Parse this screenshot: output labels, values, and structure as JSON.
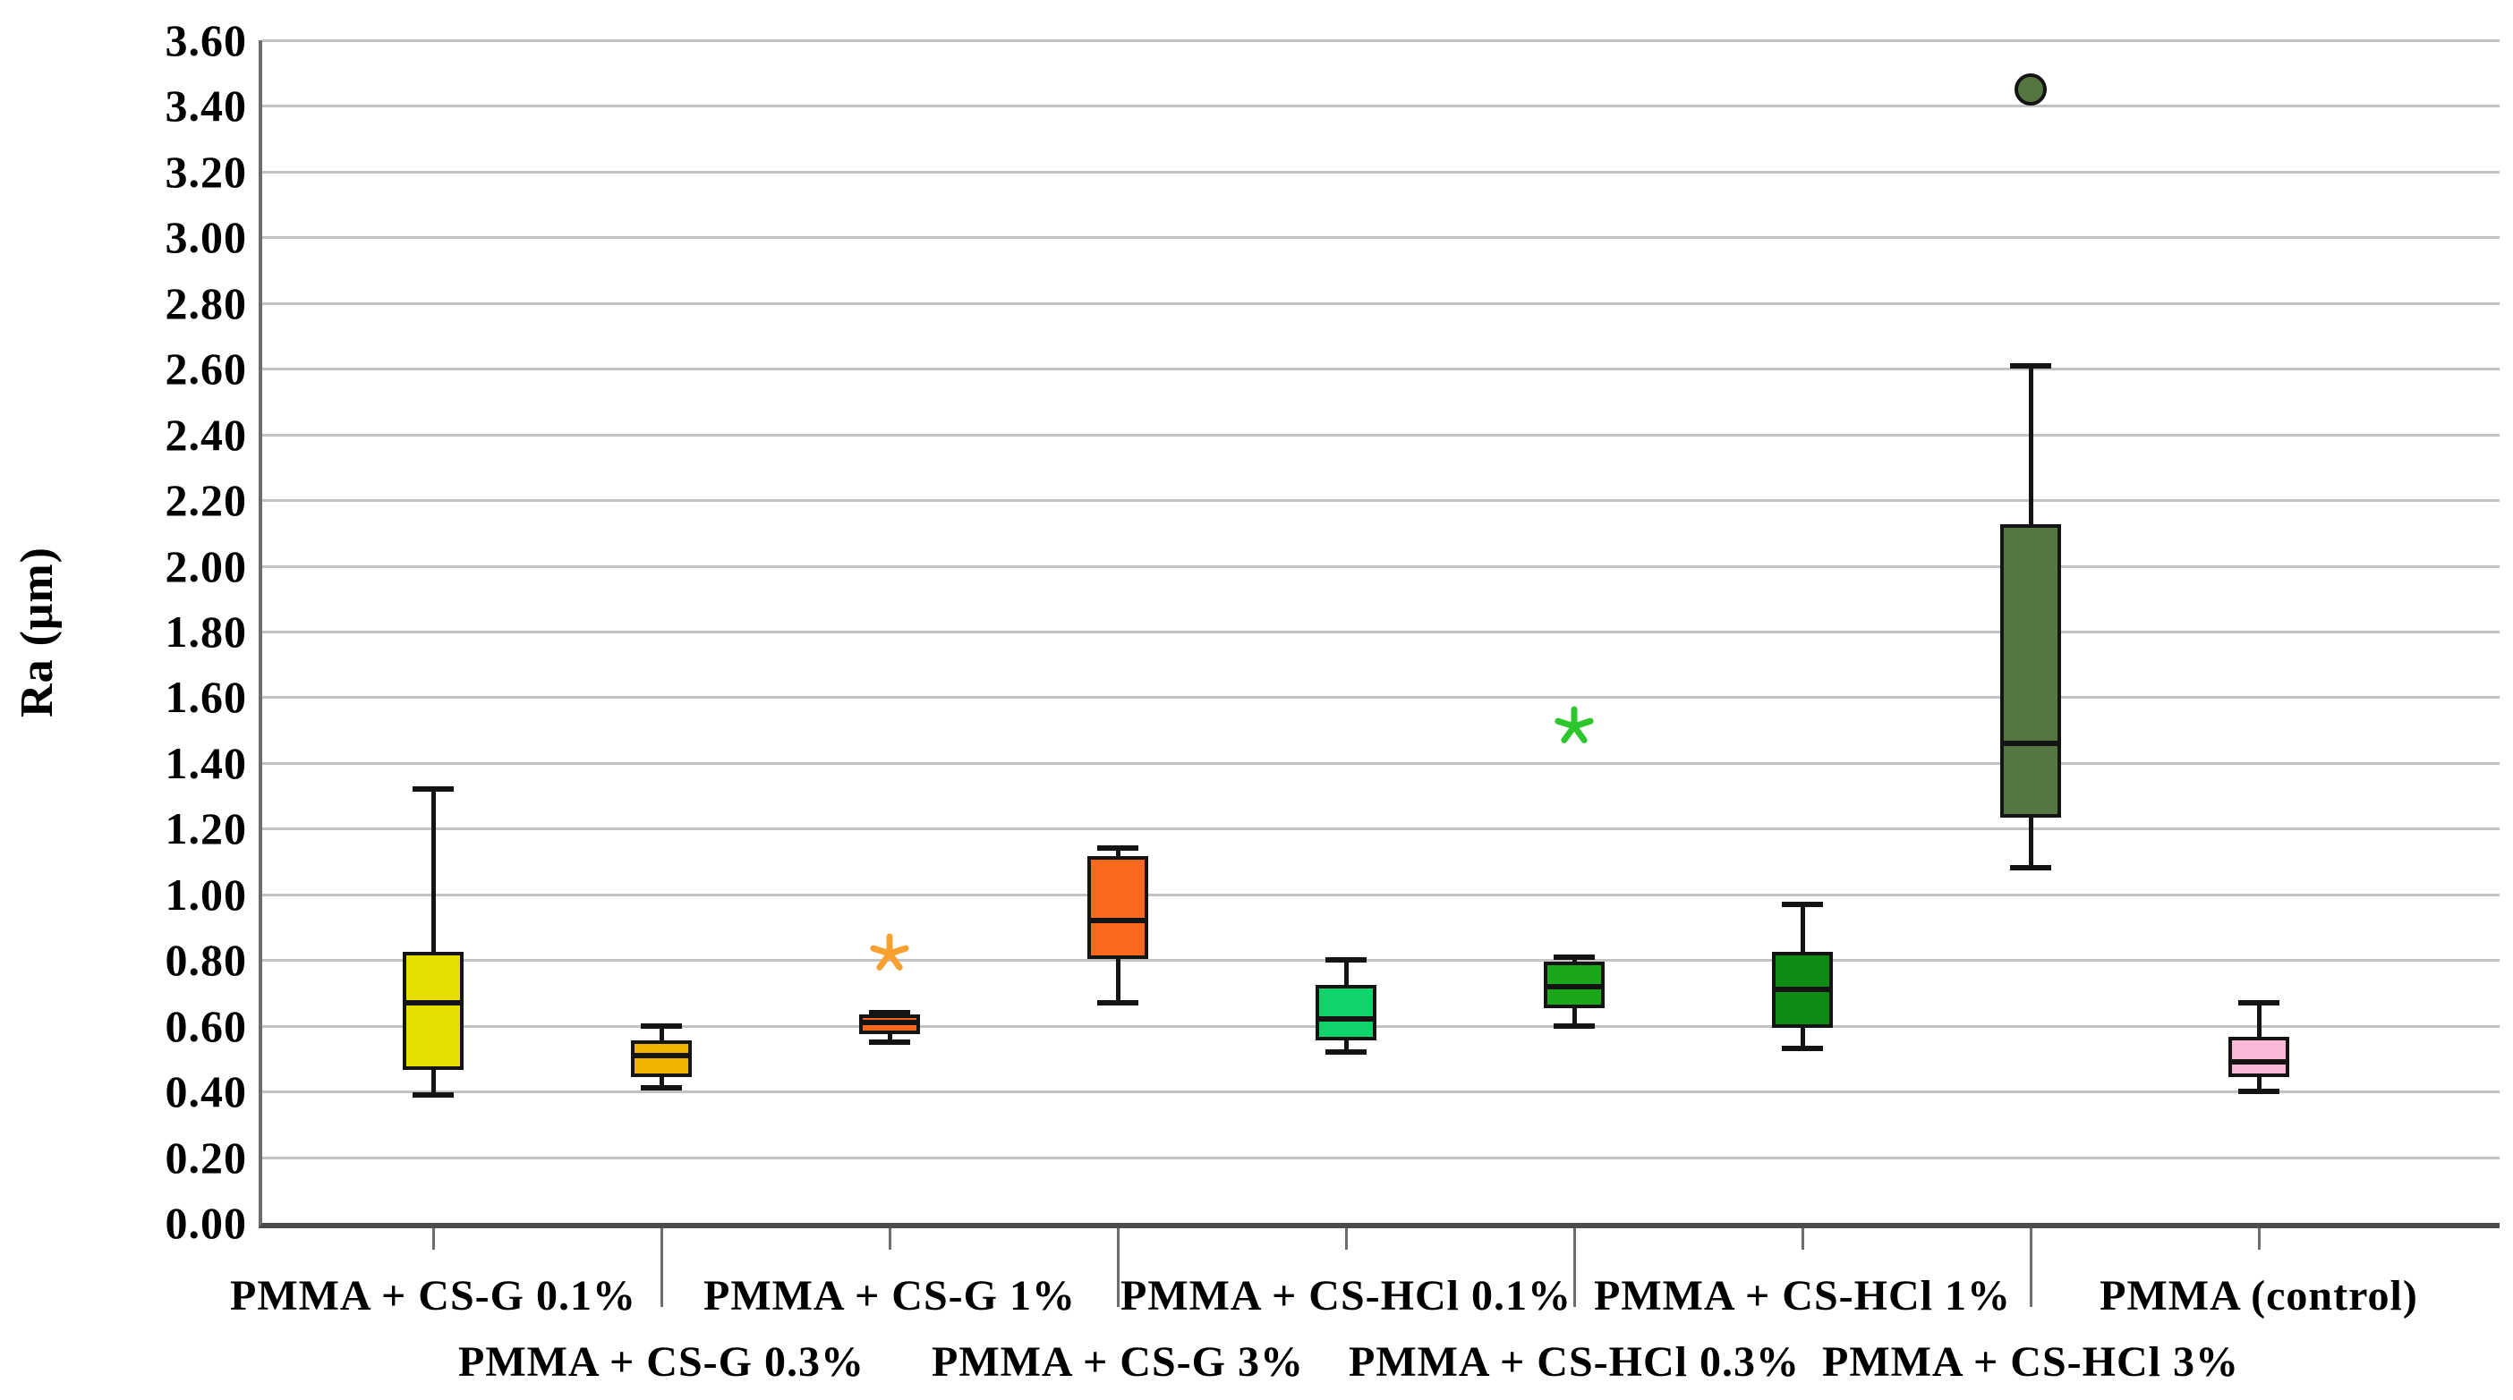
{
  "chart_data": {
    "type": "boxplot",
    "title": "",
    "xlabel": "",
    "ylabel": "Ra (μm)",
    "y_axis": {
      "min": 0.0,
      "max": 3.6,
      "step": 0.2,
      "tick_labels": [
        "0.00",
        "0.20",
        "0.40",
        "0.60",
        "0.80",
        "1.00",
        "1.20",
        "1.40",
        "1.60",
        "1.80",
        "2.00",
        "2.20",
        "2.40",
        "2.60",
        "2.80",
        "3.00",
        "3.20",
        "3.40",
        "3.60"
      ]
    },
    "grid": "horizontal",
    "legend": "none",
    "categories": [
      "PMMA + CS-G 0.1%",
      "PMMA + CS-G 0.3%",
      "PMMA + CS-G 1%",
      "PMMA + CS-G 3%",
      "PMMA + CS-HCl 0.1%",
      "PMMA + CS-HCl 0.3%",
      "PMMA + CS-HCl 1%",
      "PMMA + CS-HCl 3%",
      "PMMA (control)"
    ],
    "series": [
      {
        "label": "PMMA + CS-G 0.1%",
        "color": "#e6de00",
        "whisker_low": 0.39,
        "q1": 0.47,
        "median": 0.67,
        "q3": 0.82,
        "whisker_high": 1.32,
        "outliers": []
      },
      {
        "label": "PMMA + CS-G 0.3%",
        "color": "#f0b400",
        "whisker_low": 0.41,
        "q1": 0.45,
        "median": 0.51,
        "q3": 0.55,
        "whisker_high": 0.6,
        "outliers": []
      },
      {
        "label": "PMMA + CS-G 1%",
        "color": "#f8691d",
        "whisker_low": 0.55,
        "q1": 0.58,
        "median": 0.61,
        "q3": 0.63,
        "whisker_high": 0.64,
        "outliers": [
          {
            "marker": "asterisk",
            "value": 0.82,
            "color": "#f9a02f"
          }
        ]
      },
      {
        "label": "PMMA + CS-G 3%",
        "color": "#f8691d",
        "whisker_low": 0.67,
        "q1": 0.81,
        "median": 0.92,
        "q3": 1.11,
        "whisker_high": 1.14,
        "outliers": []
      },
      {
        "label": "PMMA + CS-HCl 0.1%",
        "color": "#10d36b",
        "whisker_low": 0.52,
        "q1": 0.56,
        "median": 0.62,
        "q3": 0.72,
        "whisker_high": 0.8,
        "outliers": []
      },
      {
        "label": "PMMA + CS-HCl 0.3%",
        "color": "#1aa81a",
        "whisker_low": 0.6,
        "q1": 0.66,
        "median": 0.72,
        "q3": 0.79,
        "whisker_high": 0.81,
        "outliers": [
          {
            "marker": "asterisk",
            "value": 1.51,
            "color": "#2dc62d"
          }
        ]
      },
      {
        "label": "PMMA + CS-HCl 1%",
        "color": "#0e8b12",
        "whisker_low": 0.53,
        "q1": 0.6,
        "median": 0.71,
        "q3": 0.82,
        "whisker_high": 0.97,
        "outliers": []
      },
      {
        "label": "PMMA + CS-HCl 3%",
        "color": "#567641",
        "whisker_low": 1.08,
        "q1": 1.24,
        "median": 1.46,
        "q3": 2.12,
        "whisker_high": 2.61,
        "outliers": [
          {
            "marker": "circle",
            "value": 3.45,
            "color": "#567641"
          }
        ]
      },
      {
        "label": "PMMA (control)",
        "color": "#fab9d6",
        "whisker_low": 0.4,
        "q1": 0.45,
        "median": 0.49,
        "q3": 0.56,
        "whisker_high": 0.67,
        "outliers": []
      }
    ],
    "colors": {
      "axis": "#4a4a4a",
      "y_axis_line": "#6e6e6e",
      "gridline": "#c3c3c3",
      "box_outline": "#141414",
      "background": "#ffffff"
    }
  }
}
